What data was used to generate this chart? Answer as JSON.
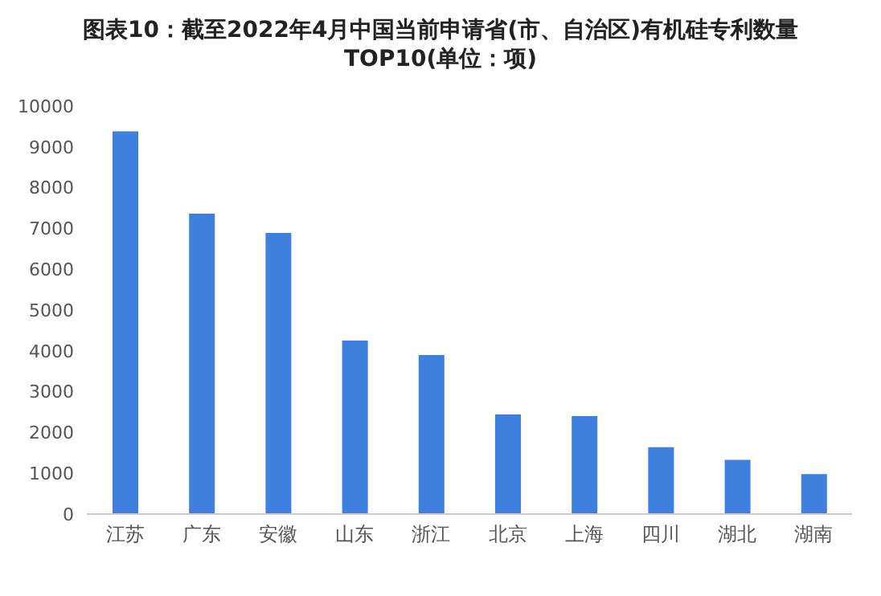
{
  "chart_data": {
    "type": "bar",
    "title": "图表10：截至2022年4月中国当前申请省(市、自治区)有机硅专利数量TOP10(单位：项)",
    "categories": [
      "江苏",
      "广东",
      "安徽",
      "山东",
      "浙江",
      "北京",
      "上海",
      "四川",
      "湖北",
      "湖南"
    ],
    "values": [
      9380,
      7360,
      6890,
      4250,
      3900,
      2440,
      2400,
      1640,
      1330,
      980
    ],
    "color": "#3f80de",
    "ylim": [
      0,
      10000
    ],
    "yticks": [
      0,
      1000,
      2000,
      3000,
      4000,
      5000,
      6000,
      7000,
      8000,
      9000,
      10000
    ],
    "grid": false
  }
}
